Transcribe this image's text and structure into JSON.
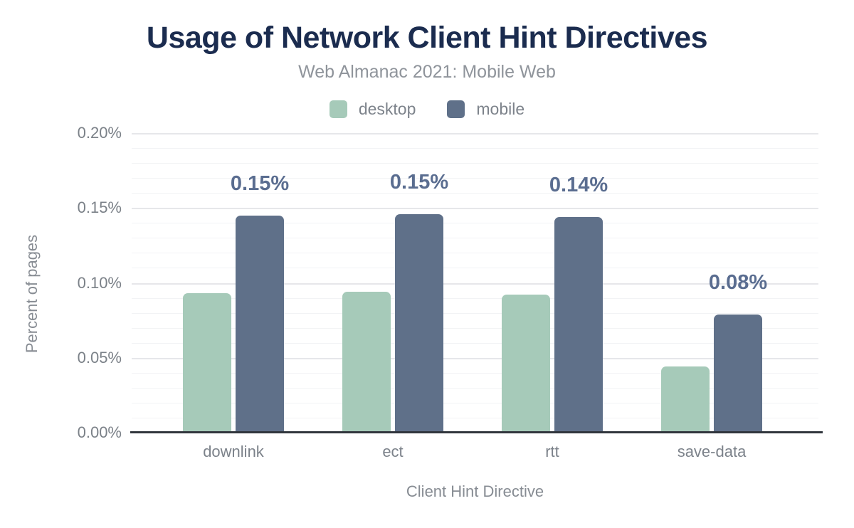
{
  "header": {
    "title": "Usage of Network Client Hint Directives",
    "subtitle": "Web Almanac 2021: Mobile Web"
  },
  "colors": {
    "title_text": "#1b2c4f",
    "subtitle_text": "#8f949b",
    "data_label_text": "#5a6d90",
    "desktop_bar": "#a6cab9",
    "mobile_bar": "#5f7089"
  },
  "chart_data": {
    "type": "bar",
    "title": "Usage of Network Client Hint Directives",
    "subtitle": "Web Almanac 2021: Mobile Web",
    "xlabel": "Client Hint Directive",
    "ylabel": "Percent of pages",
    "categories": [
      "downlink",
      "ect",
      "rtt",
      "save-data"
    ],
    "series": [
      {
        "name": "desktop",
        "color": "#a6cab9",
        "values": [
          0.093,
          0.094,
          0.092,
          0.044
        ],
        "labels": [
          "",
          "",
          "",
          ""
        ]
      },
      {
        "name": "mobile",
        "color": "#5f7089",
        "values": [
          0.145,
          0.146,
          0.144,
          0.079
        ],
        "labels": [
          "0.15%",
          "0.15%",
          "0.14%",
          "0.08%"
        ]
      }
    ],
    "ylim": [
      0,
      0.2
    ],
    "y_ticks": [
      "0.00%",
      "0.05%",
      "0.10%",
      "0.15%",
      "0.20%"
    ],
    "grid": {
      "minor_step": 0.01,
      "major_step": 0.05,
      "visible": true
    },
    "legend_position": "top",
    "value_labels_on": "mobile"
  }
}
